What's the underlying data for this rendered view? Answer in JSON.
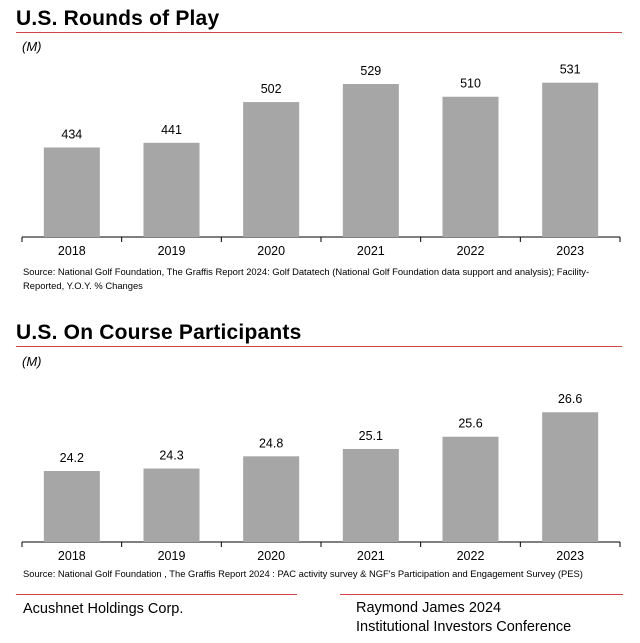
{
  "charts": [
    {
      "title": "U.S. Rounds of Play",
      "unit": "(M)",
      "source": "Source: National Golf Foundation, The Graffis Report 2024: Golf Datatech (National Golf Foundation data support and analysis); Facility-Reported, Y.O.Y. % Changes"
    },
    {
      "title": "U.S. On Course Participants",
      "unit": "(M)",
      "source": "Source: National Golf Foundation , The Graffis Report 2024 : PAC activity survey & NGF's Participation and Engagement Survey (PES)"
    }
  ],
  "chart_data": [
    {
      "type": "bar",
      "title": "U.S. Rounds of Play",
      "ylabel": "(M)",
      "categories": [
        "2018",
        "2019",
        "2020",
        "2021",
        "2022",
        "2023"
      ],
      "values": [
        434,
        441,
        502,
        529,
        510,
        531
      ],
      "value_labels": [
        "434",
        "441",
        "502",
        "529",
        "510",
        "531"
      ],
      "ylim": [
        300,
        550
      ],
      "grid": false,
      "bar_color": "#a6a6a6"
    },
    {
      "type": "bar",
      "title": "U.S. On Course Participants",
      "ylabel": "(M)",
      "categories": [
        "2018",
        "2019",
        "2020",
        "2021",
        "2022",
        "2023"
      ],
      "values": [
        24.2,
        24.3,
        24.8,
        25.1,
        25.6,
        26.6
      ],
      "value_labels": [
        "24.2",
        "24.3",
        "24.8",
        "25.1",
        "25.6",
        "26.6"
      ],
      "ylim": [
        21.3,
        27.1
      ],
      "grid": false,
      "bar_color": "#a6a6a6"
    }
  ],
  "footer": {
    "company": "Acushnet Holdings Corp.",
    "event_line1": "Raymond James 2024",
    "event_line2": "Institutional Investors Conference"
  },
  "colors": {
    "accent_rule": "#d8434a",
    "bars": "#a6a6a6"
  }
}
